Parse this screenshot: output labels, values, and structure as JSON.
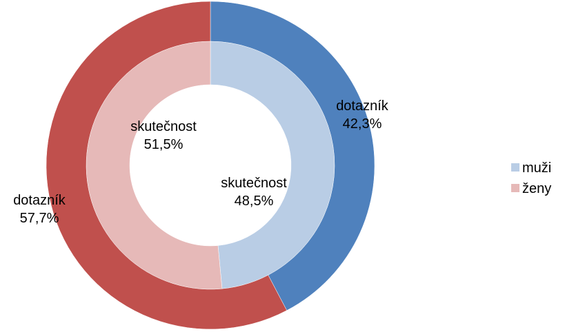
{
  "chart_data": {
    "type": "donut",
    "categories": [
      "muži",
      "ženy"
    ],
    "legend_colors": [
      "#b9cde5",
      "#e6b9b8"
    ],
    "series": [
      {
        "name": "skutečnost",
        "colors": [
          "#b9cde5",
          "#e6b9b8"
        ],
        "values": [
          48.5,
          51.5
        ],
        "value_labels": [
          "48,5%",
          "51,5%"
        ]
      },
      {
        "name": "dotazník",
        "colors": [
          "#4f81bd",
          "#c0504d"
        ],
        "values": [
          42.3,
          57.7
        ],
        "value_labels": [
          "42,3%",
          "57,7%"
        ]
      }
    ],
    "legend": "right"
  }
}
